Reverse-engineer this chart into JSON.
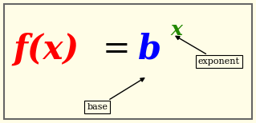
{
  "bg_color": "#fffde7",
  "border_color": "#666666",
  "fx_text": "f(x)",
  "fx_color": "#ff0000",
  "eq_text": "=",
  "eq_color": "#000000",
  "b_text": "b",
  "b_color": "#0000ff",
  "x_text": "x",
  "x_color": "#228800",
  "base_label": "base",
  "exponent_label": "exponent",
  "label_fontsize": 8,
  "main_fontsize": 30,
  "exp_fontsize": 18,
  "figsize": [
    3.19,
    1.54
  ],
  "dpi": 100
}
